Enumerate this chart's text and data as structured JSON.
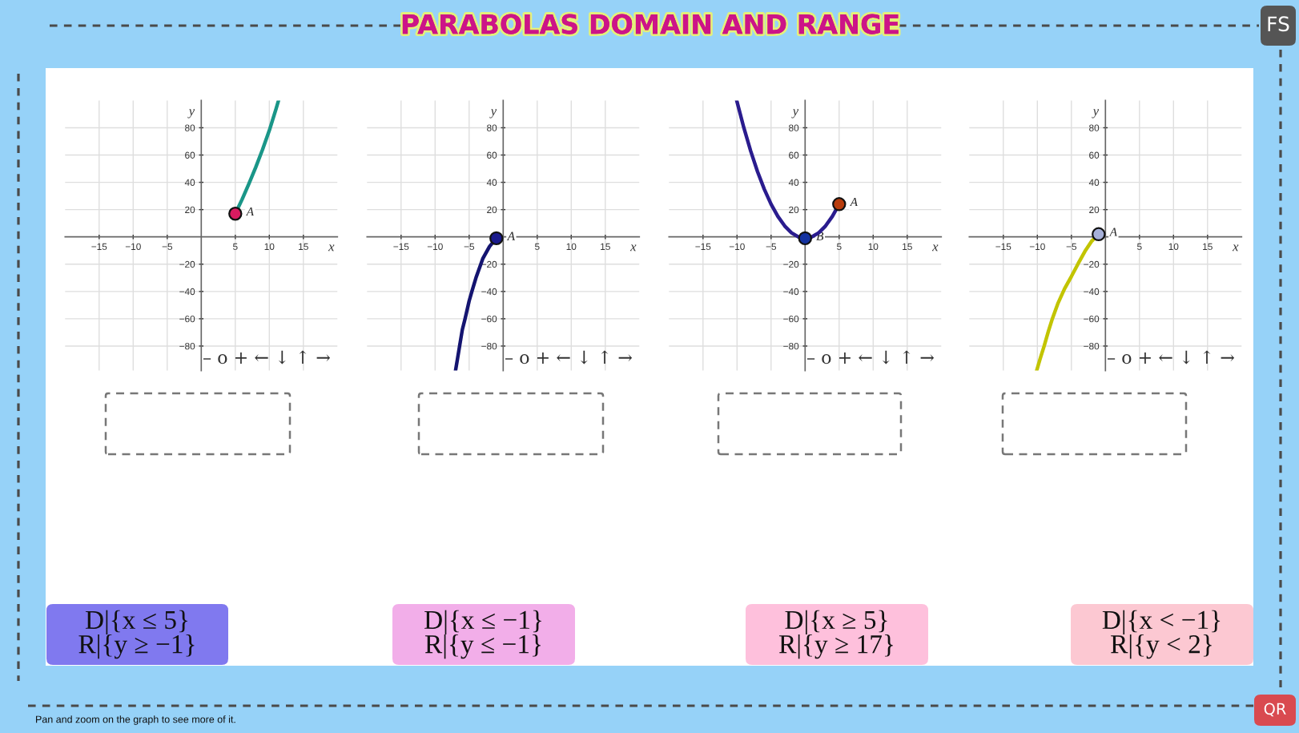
{
  "chart_data": [
    {
      "type": "other",
      "title": "PARABOLAS DOMAIN AND RANGE",
      "annotations": [
        "FS"
      ]
    },
    {
      "type": "line",
      "xlabel": "x",
      "ylabel": "y",
      "xlim": [
        -20,
        20
      ],
      "ylim": [
        -98,
        100
      ],
      "xticks": [
        {
          "value": -15,
          "label": "−15"
        },
        {
          "value": -10,
          "label": "−10"
        },
        {
          "value": -5,
          "label": "−5"
        },
        5,
        10,
        15
      ],
      "yticks": [
        {
          "value": -80,
          "label": "−80"
        },
        {
          "value": -60,
          "label": "−60"
        },
        {
          "value": -40,
          "label": "−40"
        },
        {
          "value": -20,
          "label": "−20"
        },
        20,
        40,
        60,
        80
      ],
      "grid": true,
      "series": [
        {
          "type": "line",
          "color": "#1a9688",
          "x": [
            5,
            6,
            7,
            8,
            9,
            10,
            11,
            11.35
          ],
          "values": [
            17,
            27.5,
            39,
            51,
            64,
            78,
            94,
            100
          ]
        },
        {
          "type": "scatter",
          "marker": "circle",
          "color": "#d81b60",
          "x": [
            5
          ],
          "values": [
            17
          ]
        }
      ],
      "annotations": [
        {
          "text": "A",
          "x": 5,
          "y": 17
        },
        "– o + ← ↓ ↑ →"
      ]
    },
    {
      "type": "line",
      "xlabel": "x",
      "ylabel": "y",
      "xlim": [
        -20,
        20
      ],
      "ylim": [
        -98,
        100
      ],
      "xticks": [
        {
          "value": -15,
          "label": "−15"
        },
        {
          "value": -10,
          "label": "−10"
        },
        {
          "value": -5,
          "label": "−5"
        },
        5,
        10,
        15
      ],
      "yticks": [
        {
          "value": -80,
          "label": "−80"
        },
        {
          "value": -60,
          "label": "−60"
        },
        {
          "value": -40,
          "label": "−40"
        },
        {
          "value": -20,
          "label": "−20"
        },
        20,
        40,
        60,
        80
      ],
      "grid": true,
      "series": [
        {
          "type": "line",
          "color": "#141470",
          "x": [
            -1,
            -2,
            -3,
            -4,
            -4.6,
            -5,
            -5.6,
            -6,
            -6.4,
            -6.7,
            -7
          ],
          "values": [
            -1,
            -7,
            -16,
            -30,
            -40,
            -47,
            -60,
            -68,
            -80,
            -89,
            -98
          ]
        },
        {
          "type": "scatter",
          "marker": "circle",
          "color": "#1a1a8c",
          "x": [
            -1
          ],
          "values": [
            -1
          ]
        }
      ],
      "annotations": [
        {
          "text": "A",
          "x": -1,
          "y": -1
        },
        "– o + ← ↓ ↑ →"
      ]
    },
    {
      "type": "line",
      "xlabel": "x",
      "ylabel": "y",
      "xlim": [
        -20,
        20
      ],
      "ylim": [
        -98,
        100
      ],
      "xticks": [
        {
          "value": -15,
          "label": "−15"
        },
        {
          "value": -10,
          "label": "−10"
        },
        {
          "value": -5,
          "label": "−5"
        },
        5,
        10,
        15
      ],
      "yticks": [
        {
          "value": -80,
          "label": "−80"
        },
        {
          "value": -60,
          "label": "−60"
        },
        {
          "value": -40,
          "label": "−40"
        },
        {
          "value": -20,
          "label": "−20"
        },
        20,
        40,
        60,
        80
      ],
      "grid": true,
      "series": [
        {
          "type": "line",
          "color": "#2a1c8e",
          "x": [
            -10.05,
            -9,
            -8,
            -7,
            -6,
            -5,
            -4,
            -3,
            -2,
            -1,
            0,
            1,
            2,
            3,
            4,
            5
          ],
          "values": [
            100,
            80,
            63,
            48,
            35,
            24,
            15,
            8,
            3,
            0,
            -1,
            0,
            3,
            8,
            15,
            24
          ]
        },
        {
          "type": "scatter",
          "marker": "circle",
          "color": "#b83c0c",
          "x": [
            5
          ],
          "values": [
            24
          ]
        },
        {
          "type": "scatter",
          "marker": "circle",
          "color": "#1432a0",
          "x": [
            0
          ],
          "values": [
            -1
          ]
        }
      ],
      "annotations": [
        {
          "text": "A",
          "x": 5,
          "y": 24
        },
        {
          "text": "B",
          "x": 0,
          "y": -1
        },
        "– o + ← ↓ ↑ →"
      ]
    },
    {
      "type": "line",
      "xlabel": "x",
      "ylabel": "y",
      "xlim": [
        -20,
        20
      ],
      "ylim": [
        -98,
        100
      ],
      "xticks": [
        {
          "value": -15,
          "label": "−15"
        },
        {
          "value": -10,
          "label": "−10"
        },
        {
          "value": -5,
          "label": "−5"
        },
        5,
        10,
        15
      ],
      "yticks": [
        {
          "value": -80,
          "label": "−80"
        },
        {
          "value": -60,
          "label": "−60"
        },
        {
          "value": -40,
          "label": "−40"
        },
        {
          "value": -20,
          "label": "−20"
        },
        20,
        40,
        60,
        80
      ],
      "grid": true,
      "series": [
        {
          "type": "line",
          "color": "#c2c400",
          "x": [
            -1,
            -2,
            -3,
            -4,
            -5,
            -6,
            -7,
            -7.8,
            -8.4,
            -9,
            -9.6,
            -10.1
          ],
          "values": [
            2,
            -3,
            -10.5,
            -19.5,
            -29,
            -38,
            -49,
            -60,
            -69.5,
            -80,
            -89.5,
            -98
          ]
        },
        {
          "type": "scatter",
          "marker": "circle",
          "color": "#a6b0d8",
          "x": [
            -1
          ],
          "values": [
            2
          ]
        }
      ],
      "annotations": [
        {
          "text": "A",
          "x": -1,
          "y": 2
        },
        "– o + ← ↓ ↑ →"
      ]
    },
    {
      "type": "other",
      "annotations": [
        "D|{x ≤ 5}\nR|{y ≥ −1}",
        "D|{x ≤ −1}\nR|{y ≤ −1}",
        "D|{x ≥ 5}\nR|{y ≥ 17}",
        "D|{x < −1}\nR|{y < 2}",
        "Pan and zoom on the graph to see more of it.",
        "QR"
      ]
    }
  ]
}
